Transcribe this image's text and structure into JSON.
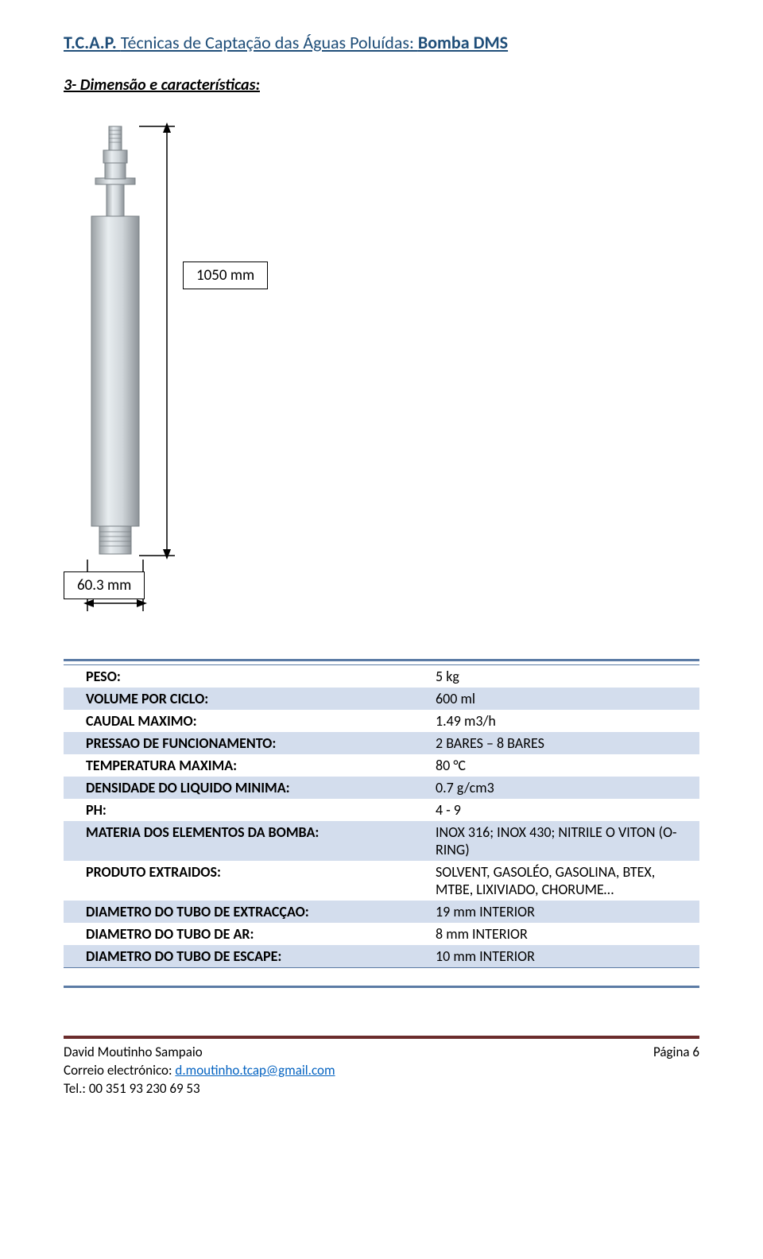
{
  "header": {
    "title_prefix": "T.C.A.P. ",
    "title_mid": "Técnicas de Captação das Águas Poluídas: ",
    "title_bold": "Bomba DMS"
  },
  "section": {
    "title": "3-   Dimensão e características:"
  },
  "diagram": {
    "length_label": "1050 mm",
    "width_label": "60.3 mm",
    "body_color": "#cfd4d7",
    "highlight_color": "#eef2f4",
    "outline_color": "#888f94"
  },
  "specs": [
    {
      "label": "PESO:",
      "value": "5 kg"
    },
    {
      "label": "VOLUME POR CICLO:",
      "value": "600 ml"
    },
    {
      "label": "CAUDAL MAXIMO:",
      "value": "1.49 m3/h"
    },
    {
      "label": "PRESSAO DE FUNCIONAMENTO:",
      "value": "2 BARES – 8 BARES"
    },
    {
      "label": "TEMPERATURA MAXIMA:",
      "value": "80 °C"
    },
    {
      "label": "DENSIDADE DO LIQUIDO MINIMA:",
      "value": "0.7 g/cm3"
    },
    {
      "label": "PH:",
      "value": "4 - 9"
    },
    {
      "label": "MATERIA DOS ELEMENTOS DA BOMBA:",
      "value": "INOX 316; INOX 430; NITRILE O VITON (O-RING)"
    },
    {
      "label": "PRODUTO EXTRAIDOS:",
      "value": "SOLVENT, GASOLÉO, GASOLINA, BTEX, MTBE, LIXIVIADO, CHORUME…"
    },
    {
      "label": "DIAMETRO DO TUBO DE EXTRACÇAO:",
      "value": "19 mm INTERIOR"
    },
    {
      "label": "DIAMETRO DO TUBO DE AR:",
      "value": "8 mm INTERIOR"
    },
    {
      "label": "DIAMETRO DO TUBO DE ESCAPE:",
      "value": "10 mm INTERIOR"
    }
  ],
  "table_style": {
    "row_alt_bg": "#d3dded",
    "rule_color": "#5b7ba5"
  },
  "footer": {
    "author": "David Moutinho Sampaio",
    "email_label": "Correio electrónico: ",
    "email": "d.moutinho.tcap@gmail.com",
    "tel": "Tel.: 00 351 93 230 69 53",
    "page_label": "Página 6",
    "rule_color": "#6b2c2c",
    "link_color": "#0563c1"
  }
}
